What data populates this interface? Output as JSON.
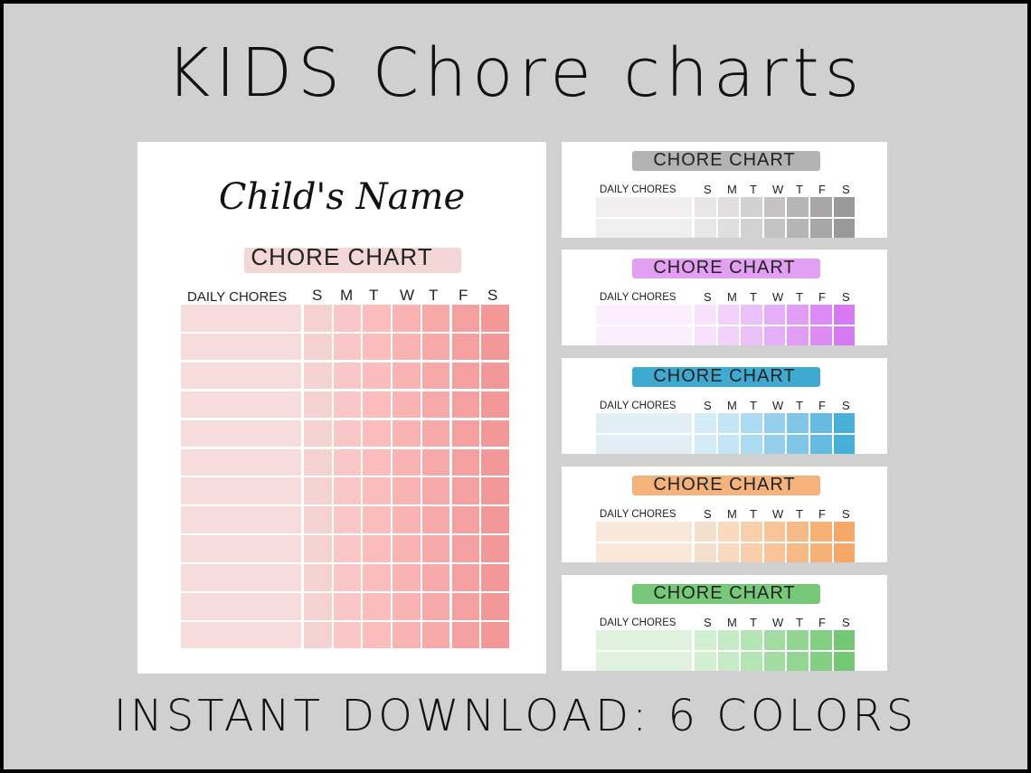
{
  "title": "KIDS Chore charts",
  "footer": "INSTANT DOWNLOAD: 6 COLORS",
  "main": {
    "child_name": "Child's Name",
    "chart_title": "CHORE CHART",
    "chores_label": "DAILY CHORES",
    "days": [
      "S",
      "M",
      "T",
      "W",
      "T",
      "F",
      "S"
    ],
    "row_count": 12,
    "colors": {
      "swatch": "#f3d6d6",
      "chores_col": "#f6dcdc",
      "days": [
        "#f4d2d2",
        "#fbc6c6",
        "#fbbcbc",
        "#f9b3b3",
        "#f7a9a9",
        "#f5a0a0",
        "#f39898"
      ]
    }
  },
  "minis": [
    {
      "name": "gray",
      "chart_title": "CHORE CHART",
      "chores_label": "DAILY CHORES",
      "days": [
        "S",
        "M",
        "T",
        "W",
        "T",
        "F",
        "S"
      ],
      "swatch": "#b3b3b3",
      "chores_col": "#f0eeee",
      "day_colors": [
        "#e8e6e6",
        "#dfdddd",
        "#d3d1d1",
        "#c4c2c2",
        "#b6b4b4",
        "#a8a6a6",
        "#999"
      ]
    },
    {
      "name": "purple",
      "chart_title": "CHORE CHART",
      "chores_label": "DAILY CHORES",
      "days": [
        "S",
        "M",
        "T",
        "W",
        "T",
        "F",
        "S"
      ],
      "swatch": "#e3a0f3",
      "chores_col": "#fbeefe",
      "day_colors": [
        "#f7e2fd",
        "#f2d2fb",
        "#ecc0f9",
        "#e7aef8",
        "#e19cf6",
        "#dc8af4",
        "#d77af2"
      ]
    },
    {
      "name": "blue",
      "chart_title": "CHORE CHART",
      "chores_label": "DAILY CHORES",
      "days": [
        "S",
        "M",
        "T",
        "W",
        "T",
        "F",
        "S"
      ],
      "swatch": "#3fa9cf",
      "chores_col": "#e2eef5",
      "day_colors": [
        "#d5ecf6",
        "#c3e5f4",
        "#acdaf0",
        "#94cfeb",
        "#7ec5e6",
        "#66badf",
        "#48afd8"
      ]
    },
    {
      "name": "orange",
      "chart_title": "CHORE CHART",
      "chores_label": "DAILY CHORES",
      "days": [
        "S",
        "M",
        "T",
        "W",
        "T",
        "F",
        "S"
      ],
      "swatch": "#f5b37c",
      "chores_col": "#f9e8da",
      "day_colors": [
        "#f2dfcd",
        "#f8d9be",
        "#f9ceaa",
        "#f8c497",
        "#f7ba86",
        "#f6b176",
        "#f5a868"
      ]
    },
    {
      "name": "green",
      "chart_title": "CHORE CHART",
      "chores_label": "DAILY CHORES",
      "days": [
        "S",
        "M",
        "T",
        "W",
        "T",
        "F",
        "S"
      ],
      "swatch": "#78c87a",
      "chores_col": "#dff2de",
      "day_colors": [
        "#d3efd3",
        "#c5eac5",
        "#b4e3b4",
        "#a3dca3",
        "#93d593",
        "#84cf84",
        "#74c774"
      ]
    }
  ]
}
